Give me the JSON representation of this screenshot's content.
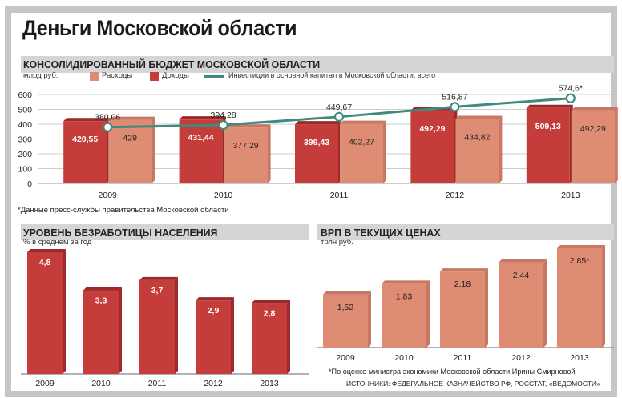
{
  "title": "Деньги Московской области",
  "colors": {
    "red": "#c53d3b",
    "red_top": "#9a2b2a",
    "salmon": "#de8c74",
    "salmon_top": "#c87763",
    "line": "#3f8a80",
    "band": "#d5d5d5",
    "frame": "#c6c6c6"
  },
  "budget": {
    "heading": "КОНСОЛИДИРОВАННЫЙ БЮДЖЕТ МОСКОВСКОЙ ОБЛАСТИ",
    "unit": "млрд руб.",
    "legend": {
      "expenses": "Расходы",
      "income": "Доходы",
      "investments": "Инвестиции в основной капитал в Московской области, всего"
    },
    "note": "*Данные пресс-службы правительства Московской области"
  },
  "unemployment": {
    "heading": "УРОВЕНЬ БЕЗРАБОТИЦЫ НАСЕЛЕНИЯ",
    "unit": "% в среднем за год"
  },
  "grp": {
    "heading": "ВРП В ТЕКУЩИХ ЦЕНАХ",
    "unit": "трлн руб.",
    "note": "*По оценке министра экономики Московской области Ирины Смирновой"
  },
  "source": "ИСТОЧНИКИ: ФЕДЕРАЛЬНОЕ КАЗНАЧЕЙСТВО РФ, РОССТАТ, «ВЕДОМОСТИ»",
  "chart_data": [
    {
      "type": "bar",
      "title": "КОНСОЛИДИРОВАННЫЙ БЮДЖЕТ МОСКОВСКОЙ ОБЛАСТИ",
      "ylabel": "млрд руб.",
      "ylim": [
        0,
        600
      ],
      "yticks": [
        0,
        100,
        200,
        300,
        400,
        500,
        600
      ],
      "categories": [
        "2009",
        "2010",
        "2011",
        "2012",
        "2013"
      ],
      "series": [
        {
          "name": "Доходы",
          "values": [
            420.55,
            431.44,
            399.43,
            492.29,
            509.13
          ],
          "labels": [
            "420,55",
            "431,44",
            "399,43",
            "492,29",
            "509,13"
          ]
        },
        {
          "name": "Расходы",
          "values": [
            429,
            377.29,
            402.27,
            434.82,
            492.29
          ],
          "labels": [
            "429",
            "377,29",
            "402,27",
            "434,82",
            "492,29"
          ]
        },
        {
          "name": "Инвестиции в основной капитал в Московской области, всего",
          "type": "line",
          "values": [
            380.06,
            394.28,
            449.67,
            516.87,
            574.6
          ],
          "labels": [
            "380,06",
            "394,28",
            "449,67",
            "516,87",
            "574,6*"
          ]
        }
      ]
    },
    {
      "type": "bar",
      "title": "УРОВЕНЬ БЕЗРАБОТИЦЫ НАСЕЛЕНИЯ",
      "ylabel": "% в среднем за год",
      "categories": [
        "2009",
        "2010",
        "2011",
        "2012",
        "2013"
      ],
      "values": [
        4.8,
        3.3,
        3.7,
        2.9,
        2.8
      ],
      "labels": [
        "4,8",
        "3,3",
        "3,7",
        "2,9",
        "2,8"
      ]
    },
    {
      "type": "bar",
      "title": "ВРП В ТЕКУЩИХ ЦЕНАХ",
      "ylabel": "трлн руб.",
      "categories": [
        "2009",
        "2010",
        "2011",
        "2012",
        "2013"
      ],
      "values": [
        1.52,
        1.83,
        2.18,
        2.44,
        2.85
      ],
      "labels": [
        "1,52",
        "1,83",
        "2,18",
        "2,44",
        "2,85*"
      ]
    }
  ]
}
